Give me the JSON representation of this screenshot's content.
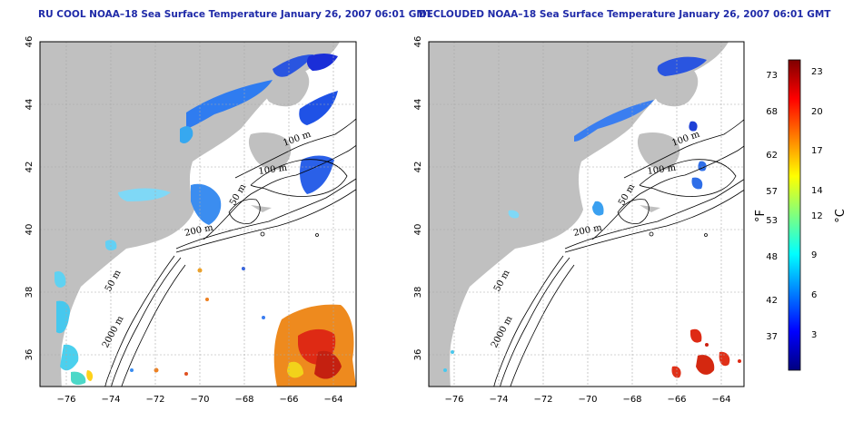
{
  "panels": [
    {
      "title": "RU COOL NOAA–18 Sea Surface Temperature January 26, 2007 06:01 GMT",
      "contour_labels": [
        "100 m",
        "100 m",
        "50 m",
        "200 m",
        "50 m",
        "2000 m"
      ]
    },
    {
      "title": "DECLOUDED NOAA–18 Sea Surface Temperature January 26, 2007 06:01 GMT",
      "contour_labels": [
        "100 m",
        "100 m",
        "50 m",
        "200 m",
        "50 m",
        "2000 m"
      ]
    }
  ],
  "axes": {
    "lon_ticks": [
      "−76",
      "−74",
      "−72",
      "−70",
      "−68",
      "−66",
      "−64"
    ],
    "lat_ticks": [
      "36",
      "38",
      "40",
      "42",
      "44",
      "46"
    ],
    "lon_range": [
      -77.2,
      -63.2
    ],
    "lat_range": [
      35,
      46
    ]
  },
  "colorbar": {
    "fahrenheit_label": "°F",
    "celsius_label": "°C",
    "fahrenheit_ticks": [
      "73",
      "68",
      "62",
      "57",
      "53",
      "48",
      "42",
      "37"
    ],
    "celsius_ticks": [
      "23",
      "20",
      "17",
      "14",
      "12",
      "9",
      "6",
      "3"
    ],
    "gradient": [
      "#00007f",
      "#0000ff",
      "#007fff",
      "#00ffff",
      "#7fff7f",
      "#ffff00",
      "#ff7f00",
      "#ff0000",
      "#7f0000"
    ]
  },
  "colors": {
    "land": "#c0c0c0",
    "water": "#ffffff",
    "title": "#1f2aa8"
  }
}
